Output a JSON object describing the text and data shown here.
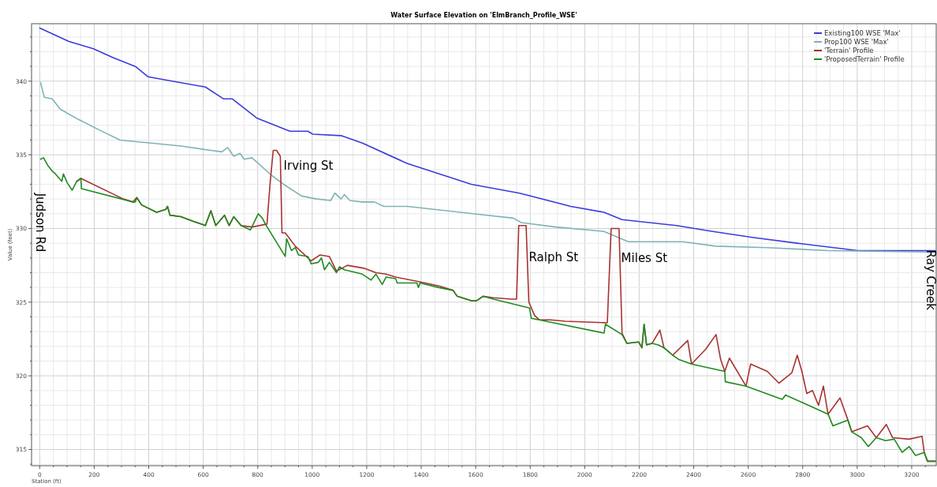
{
  "chart_data": {
    "type": "line",
    "title": "Water Surface Elevation on 'ElmBranch_Profile_WSE'",
    "xlabel": "Station (ft)",
    "ylabel": "Value (feet)",
    "xlim": [
      -30,
      3290
    ],
    "ylim": [
      313.9,
      343.9
    ],
    "xticks": [
      0,
      {
        "value": 50,
        "label": null
      },
      {
        "value": 100,
        "label": null
      },
      {
        "value": 150,
        "label": null
      },
      200,
      {
        "value": 250,
        "label": null
      },
      {
        "value": 300,
        "label": null
      },
      {
        "value": 350,
        "label": null
      },
      400,
      {
        "value": 450,
        "label": null
      },
      {
        "value": 500,
        "label": null
      },
      {
        "value": 550,
        "label": null
      },
      600,
      {
        "value": 650,
        "label": null
      },
      {
        "value": 700,
        "label": null
      },
      {
        "value": 750,
        "label": null
      },
      800,
      {
        "value": 850,
        "label": null
      },
      {
        "value": 900,
        "label": null
      },
      {
        "value": 950,
        "label": null
      },
      1000,
      {
        "value": 1050,
        "label": null
      },
      {
        "value": 1100,
        "label": null
      },
      {
        "value": 1150,
        "label": null
      },
      1200,
      {
        "value": 1250,
        "label": null
      },
      {
        "value": 1300,
        "label": null
      },
      {
        "value": 1350,
        "label": null
      },
      1400,
      {
        "value": 1450,
        "label": null
      },
      {
        "value": 1500,
        "label": null
      },
      {
        "value": 1550,
        "label": null
      },
      1600,
      {
        "value": 1650,
        "label": null
      },
      {
        "value": 1700,
        "label": null
      },
      {
        "value": 1750,
        "label": null
      },
      1800,
      {
        "value": 1850,
        "label": null
      },
      {
        "value": 1900,
        "label": null
      },
      {
        "value": 1950,
        "label": null
      },
      2000,
      {
        "value": 2050,
        "label": null
      },
      {
        "value": 2100,
        "label": null
      },
      {
        "value": 2150,
        "label": null
      },
      2200,
      {
        "value": 2250,
        "label": null
      },
      {
        "value": 2300,
        "label": null
      },
      {
        "value": 2350,
        "label": null
      },
      2400,
      {
        "value": 2450,
        "label": null
      },
      {
        "value": 2500,
        "label": null
      },
      {
        "value": 2550,
        "label": null
      },
      2600,
      {
        "value": 2650,
        "label": null
      },
      {
        "value": 2700,
        "label": null
      },
      {
        "value": 2750,
        "label": null
      },
      2800,
      {
        "value": 2850,
        "label": null
      },
      {
        "value": 2900,
        "label": null
      },
      {
        "value": 2950,
        "label": null
      },
      3000,
      {
        "value": 3050,
        "label": null
      },
      {
        "value": 3100,
        "label": null
      },
      {
        "value": 3150,
        "label": null
      },
      3200,
      {
        "value": 3250,
        "label": null
      }
    ],
    "yticks": [
      {
        "value": 314,
        "label": null
      },
      315,
      {
        "value": 316,
        "label": null
      },
      {
        "value": 317,
        "label": null
      },
      {
        "value": 318,
        "label": null
      },
      {
        "value": 319,
        "label": null
      },
      320,
      {
        "value": 321,
        "label": null
      },
      {
        "value": 322,
        "label": null
      },
      {
        "value": 323,
        "label": null
      },
      {
        "value": 324,
        "label": null
      },
      325,
      {
        "value": 326,
        "label": null
      },
      {
        "value": 327,
        "label": null
      },
      {
        "value": 328,
        "label": null
      },
      {
        "value": 329,
        "label": null
      },
      330,
      {
        "value": 331,
        "label": null
      },
      {
        "value": 332,
        "label": null
      },
      {
        "value": 333,
        "label": null
      },
      {
        "value": 334,
        "label": null
      },
      335,
      {
        "value": 336,
        "label": null
      },
      {
        "value": 337,
        "label": null
      },
      {
        "value": 338,
        "label": null
      },
      {
        "value": 339,
        "label": null
      },
      340,
      {
        "value": 341,
        "label": null
      },
      {
        "value": 342,
        "label": null
      },
      {
        "value": 343,
        "label": null
      }
    ],
    "grid": true,
    "legend": "top right",
    "annotations": [
      {
        "text": "Irving St",
        "x": 895,
        "y": 334
      },
      {
        "text": "Ralph St",
        "x": 1795,
        "y": 327.8
      },
      {
        "text": "Miles St",
        "x": 2134,
        "y": 327.7
      },
      "Judson Rd",
      "Ray Creek"
    ],
    "series": [
      {
        "name": "Existing100 WSE 'Max'",
        "color": "#3b3bdc",
        "x": [
          0,
          107,
          197,
          269,
          351,
          397,
          518,
          608,
          674,
          706,
          796,
          918,
          961,
          984,
          1002,
          1106,
          1184,
          1350,
          1584,
          1761,
          1949,
          2071,
          2137,
          2337,
          2470,
          2615,
          2780,
          3003,
          3287
        ],
        "values": [
          343.6,
          342.7,
          342.2,
          341.6,
          341.0,
          340.3,
          339.9,
          339.6,
          338.8,
          338.8,
          337.5,
          336.6,
          336.6,
          336.6,
          336.4,
          336.3,
          335.8,
          334.4,
          333.0,
          332.4,
          331.5,
          331.1,
          330.6,
          330.2,
          329.8,
          329.4,
          329.0,
          328.5,
          328.5
        ]
      },
      {
        "name": "Prop100 WSE 'Max'",
        "color": "#7fb3b3",
        "x": [
          3,
          17,
          46,
          75,
          142,
          217,
          295,
          408,
          518,
          628,
          669,
          689,
          712,
          735,
          750,
          779,
          851,
          895,
          961,
          1016,
          1068,
          1083,
          1106,
          1118,
          1138,
          1184,
          1228,
          1263,
          1350,
          1590,
          1738,
          1767,
          1894,
          2071,
          2160,
          2360,
          2482,
          2670,
          2893,
          3287
        ],
        "values": [
          339.9,
          338.9,
          338.8,
          338.1,
          337.4,
          336.7,
          336.0,
          335.8,
          335.6,
          335.3,
          335.2,
          335.5,
          334.9,
          335.1,
          334.7,
          334.8,
          333.6,
          333.0,
          332.2,
          332.0,
          331.9,
          332.4,
          332.0,
          332.3,
          331.9,
          331.8,
          331.8,
          331.5,
          331.5,
          331.0,
          330.7,
          330.4,
          330.1,
          329.8,
          329.1,
          329.1,
          328.8,
          328.7,
          328.5,
          328.4
        ]
      },
      {
        "name": "'Terrain' Profile",
        "color": "#a83232",
        "x": [
          136,
          151,
          307,
          342,
          356,
          374,
          429,
          463,
          469,
          478,
          518,
          562,
          608,
          628,
          646,
          678,
          695,
          712,
          739,
          779,
          834,
          846,
          857,
          869,
          883,
          889,
          901,
          938,
          996,
          1028,
          1063,
          1089,
          1129,
          1190,
          1234,
          1271,
          1306,
          1390,
          1465,
          1517,
          1532,
          1584,
          1604,
          1627,
          1665,
          1732,
          1750,
          1758,
          1785,
          1795,
          1816,
          1833,
          1874,
          1929,
          2083,
          2097,
          2126,
          2137,
          2155,
          2198,
          2210,
          2218,
          2227,
          2247,
          2276,
          2291,
          2323,
          2378,
          2392,
          2444,
          2482,
          2499,
          2514,
          2531,
          2592,
          2609,
          2670,
          2713,
          2760,
          2780,
          2797,
          2815,
          2836,
          2858,
          2876,
          2893,
          2937,
          2966,
          2980,
          3038,
          3070,
          3107,
          3130,
          3191,
          3238,
          3246,
          3258,
          3287
        ],
        "values": [
          333.2,
          333.4,
          332.0,
          331.8,
          332.1,
          331.6,
          331.1,
          331.3,
          331.5,
          330.9,
          330.8,
          330.5,
          330.2,
          331.2,
          330.2,
          330.9,
          330.2,
          330.8,
          330.2,
          330.1,
          330.3,
          333.2,
          335.3,
          335.3,
          334.9,
          329.7,
          329.7,
          328.8,
          327.8,
          328.2,
          328.1,
          327.1,
          327.5,
          327.3,
          327.0,
          326.9,
          326.7,
          326.4,
          326.1,
          325.8,
          325.4,
          325.1,
          325.1,
          325.4,
          325.3,
          325.2,
          325.2,
          330.2,
          330.2,
          325.0,
          324.1,
          323.8,
          323.8,
          323.7,
          323.6,
          330.0,
          330.0,
          322.9,
          322.2,
          322.3,
          321.9,
          323.5,
          322.1,
          322.2,
          323.1,
          321.9,
          321.4,
          322.4,
          320.8,
          321.8,
          322.8,
          321.1,
          320.3,
          321.2,
          319.3,
          320.8,
          320.3,
          319.5,
          320.2,
          321.4,
          320.3,
          318.8,
          319.0,
          318.0,
          319.3,
          317.4,
          318.5,
          317.0,
          316.2,
          316.6,
          315.8,
          316.7,
          315.8,
          315.7,
          315.9,
          314.8,
          314.2,
          314.2
        ]
      },
      {
        "name": "'ProposedTerrain' Profile",
        "color": "#1f8a1f",
        "x": [
          3,
          14,
          29,
          46,
          58,
          81,
          87,
          101,
          119,
          136,
          151,
          153,
          342,
          351,
          356,
          374,
          429,
          463,
          469,
          478,
          518,
          562,
          608,
          628,
          646,
          678,
          695,
          712,
          739,
          773,
          802,
          817,
          828,
          901,
          906,
          924,
          938,
          950,
          984,
          996,
          1022,
          1034,
          1045,
          1063,
          1089,
          1100,
          1118,
          1184,
          1216,
          1234,
          1257,
          1271,
          1306,
          1312,
          1384,
          1390,
          1396,
          1462,
          1517,
          1532,
          1584,
          1604,
          1627,
          1665,
          1798,
          1804,
          1833,
          2071,
          2076,
          2137,
          2155,
          2198,
          2210,
          2218,
          2227,
          2247,
          2270,
          2291,
          2323,
          2346,
          2392,
          2514,
          2516,
          2592,
          2725,
          2737,
          2893,
          2911,
          2966,
          2980,
          3015,
          3041,
          3070,
          3104,
          3136,
          3165,
          3191,
          3214,
          3246,
          3258,
          3287
        ],
        "values": [
          334.7,
          334.8,
          334.3,
          333.9,
          333.7,
          333.2,
          333.7,
          333.1,
          332.6,
          333.2,
          333.4,
          332.7,
          331.8,
          331.8,
          332.1,
          331.6,
          331.1,
          331.3,
          331.5,
          330.9,
          330.8,
          330.5,
          330.2,
          331.2,
          330.2,
          330.9,
          330.2,
          330.8,
          330.2,
          329.9,
          331.0,
          330.7,
          330.3,
          328.1,
          329.3,
          328.5,
          328.7,
          328.2,
          328.1,
          327.6,
          327.7,
          328.0,
          327.2,
          327.7,
          327.0,
          327.4,
          327.2,
          326.9,
          326.5,
          326.9,
          326.2,
          326.7,
          326.6,
          326.3,
          326.3,
          326.0,
          326.3,
          326.0,
          325.8,
          325.4,
          325.1,
          325.1,
          325.4,
          325.2,
          324.6,
          323.9,
          323.8,
          322.9,
          323.5,
          322.8,
          322.2,
          322.3,
          321.9,
          323.5,
          322.1,
          322.2,
          322.1,
          321.9,
          321.4,
          321.1,
          320.8,
          320.3,
          319.6,
          319.3,
          318.4,
          318.7,
          317.4,
          316.6,
          317.0,
          316.2,
          315.8,
          315.2,
          315.8,
          315.6,
          315.7,
          314.8,
          315.2,
          314.6,
          314.8,
          314.2,
          314.2
        ]
      }
    ]
  }
}
